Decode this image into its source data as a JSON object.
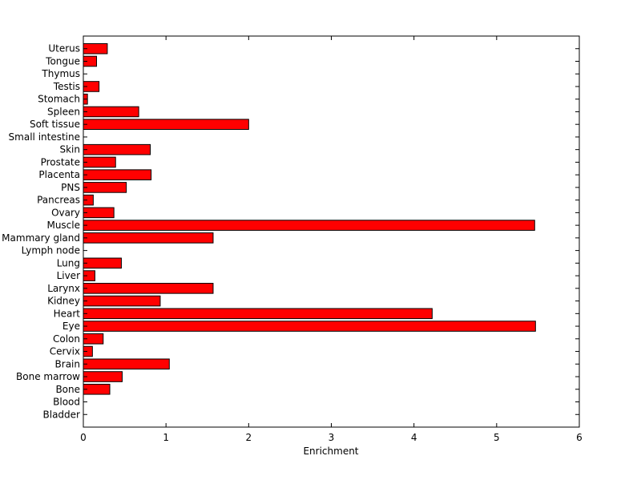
{
  "chart_data": {
    "type": "bar",
    "orientation": "horizontal",
    "title": "",
    "xlabel": "Enrichment",
    "ylabel": "",
    "xlim": [
      0,
      6
    ],
    "xticks": [
      "0",
      "1",
      "2",
      "3",
      "4",
      "5",
      "6"
    ],
    "grid": false,
    "legend": "none",
    "bar_color": "#ff0000",
    "edge_color": "#000000",
    "categories": [
      "Bladder",
      "Blood",
      "Bone",
      "Bone marrow",
      "Brain",
      "Cervix",
      "Colon",
      "Eye",
      "Heart",
      "Kidney",
      "Larynx",
      "Liver",
      "Lung",
      "Lymph node",
      "Mammary gland",
      "Muscle",
      "Ovary",
      "Pancreas",
      "PNS",
      "Placenta",
      "Prostate",
      "Skin",
      "Small intestine",
      "Soft tissue",
      "Spleen",
      "Stomach",
      "Testis",
      "Thymus",
      "Tongue",
      "Uterus"
    ],
    "values": [
      0,
      0,
      0.32,
      0.47,
      1.04,
      0.11,
      0.24,
      5.47,
      4.22,
      0.93,
      1.57,
      0.14,
      0.46,
      0,
      1.57,
      5.46,
      0.37,
      0.12,
      0.52,
      0.82,
      0.39,
      0.81,
      0,
      2.0,
      0.67,
      0.05,
      0.19,
      0,
      0.16,
      0.29
    ]
  }
}
